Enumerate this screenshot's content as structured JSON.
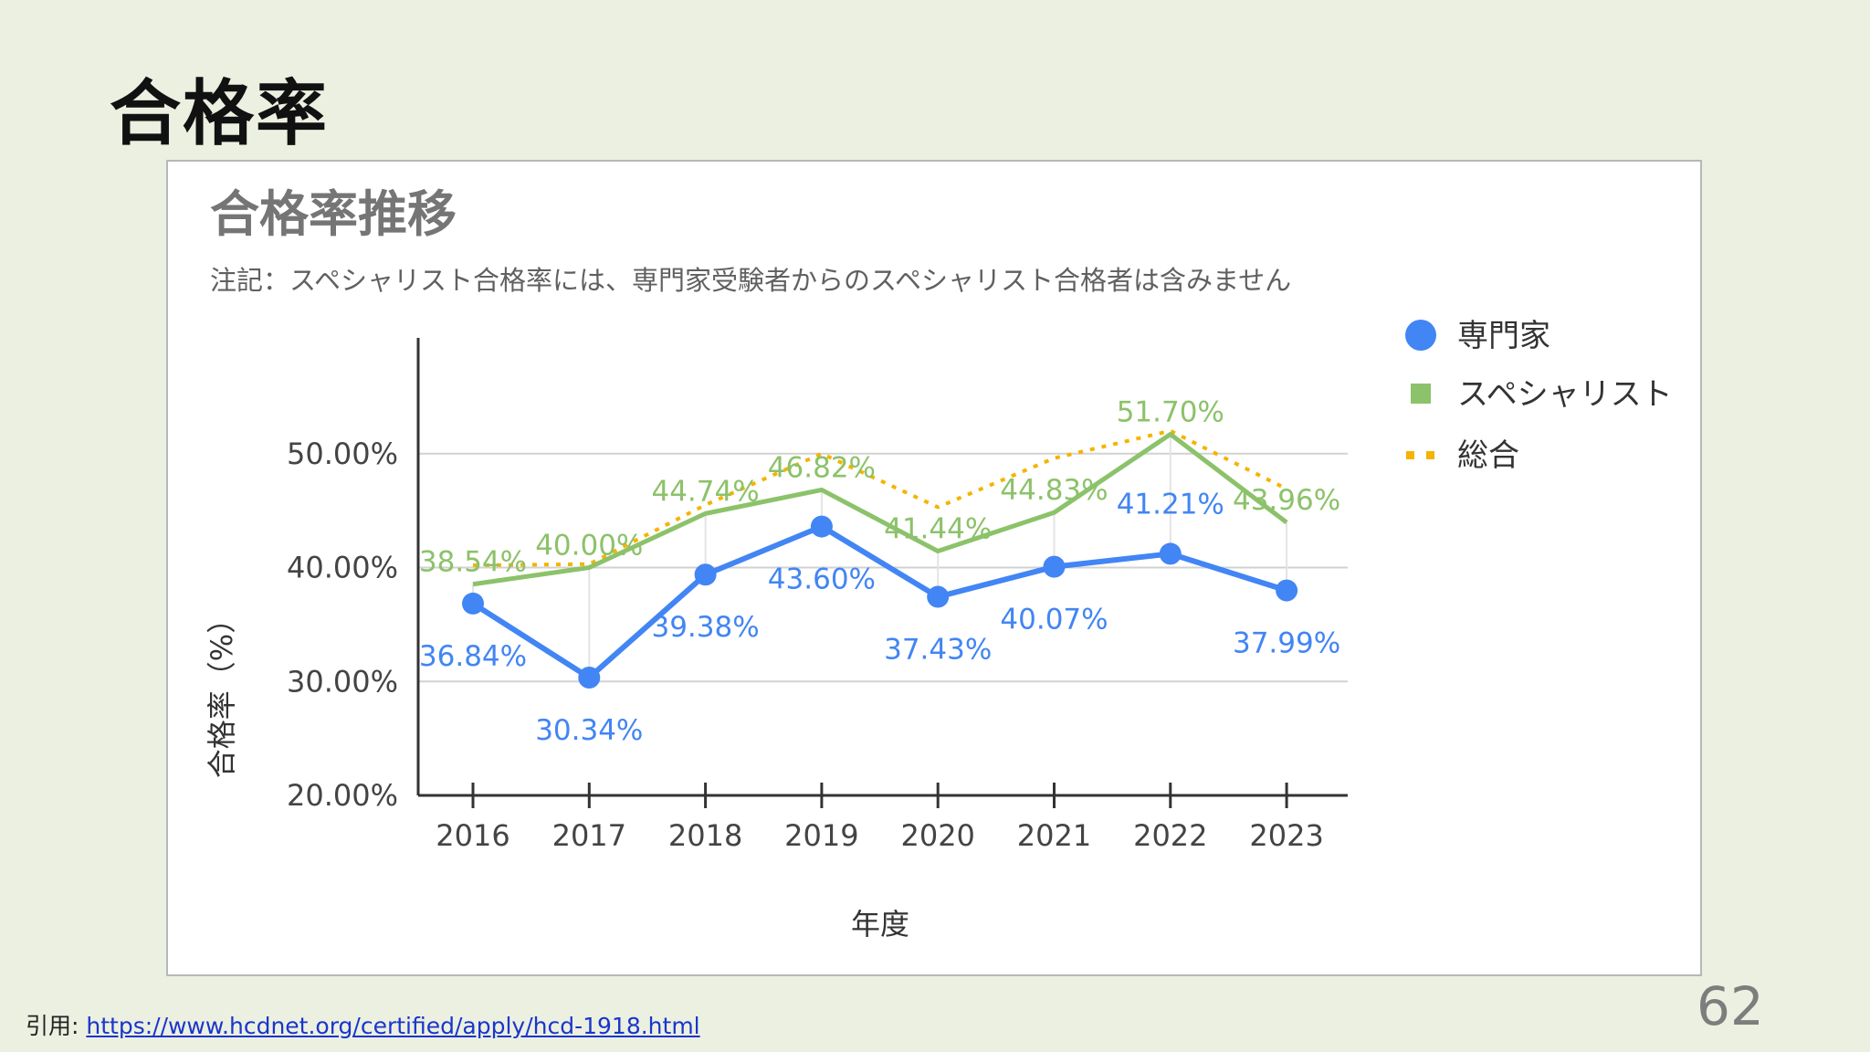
{
  "slide": {
    "title": "合格率",
    "citation_prefix": "引用: ",
    "citation_link": "https://www.hcdnet.org/certified/apply/hcd-1918.html",
    "page_number": "62"
  },
  "colors": {
    "background": "#ebf0e0",
    "senmonka": "#4285f4",
    "specialist": "#8cc26a",
    "total": "#f4b400",
    "link": "#1a35cc"
  },
  "chart_data": {
    "type": "line",
    "title": "合格率推移",
    "subtitle": "注記：スペシャリスト合格率には、専門家受験者からのスペシャリスト合格者は含みません",
    "xlabel": "年度",
    "ylabel": "合格率（%）",
    "categories": [
      "2016",
      "2017",
      "2018",
      "2019",
      "2020",
      "2021",
      "2022",
      "2023"
    ],
    "ylim": [
      20,
      60
    ],
    "yticks": [
      20,
      30,
      40,
      50
    ],
    "ytick_labels": [
      "20.00%",
      "30.00%",
      "40.00%",
      "50.00%"
    ],
    "grid": true,
    "legend_position": "right",
    "series": [
      {
        "name": "専門家",
        "marker": "circle",
        "line": "solid",
        "values": [
          36.84,
          30.34,
          39.38,
          43.6,
          37.43,
          40.07,
          41.21,
          37.99
        ],
        "labels": [
          "36.84%",
          "30.34%",
          "39.38%",
          "43.60%",
          "37.43%",
          "40.07%",
          "41.21%",
          "37.99%"
        ]
      },
      {
        "name": "スペシャリスト",
        "marker": "square",
        "line": "solid",
        "values": [
          38.54,
          40.0,
          44.74,
          46.82,
          41.44,
          44.83,
          51.7,
          43.96
        ],
        "labels": [
          "38.54%",
          "40.00%",
          "44.74%",
          "46.82%",
          "41.44%",
          "44.83%",
          "51.70%",
          "43.96%"
        ]
      },
      {
        "name": "総合",
        "marker": "none",
        "line": "dotted",
        "values": [
          40.2,
          40.3,
          45.5,
          50.0,
          45.3,
          49.6,
          52.0,
          46.9
        ],
        "labels": []
      }
    ]
  }
}
